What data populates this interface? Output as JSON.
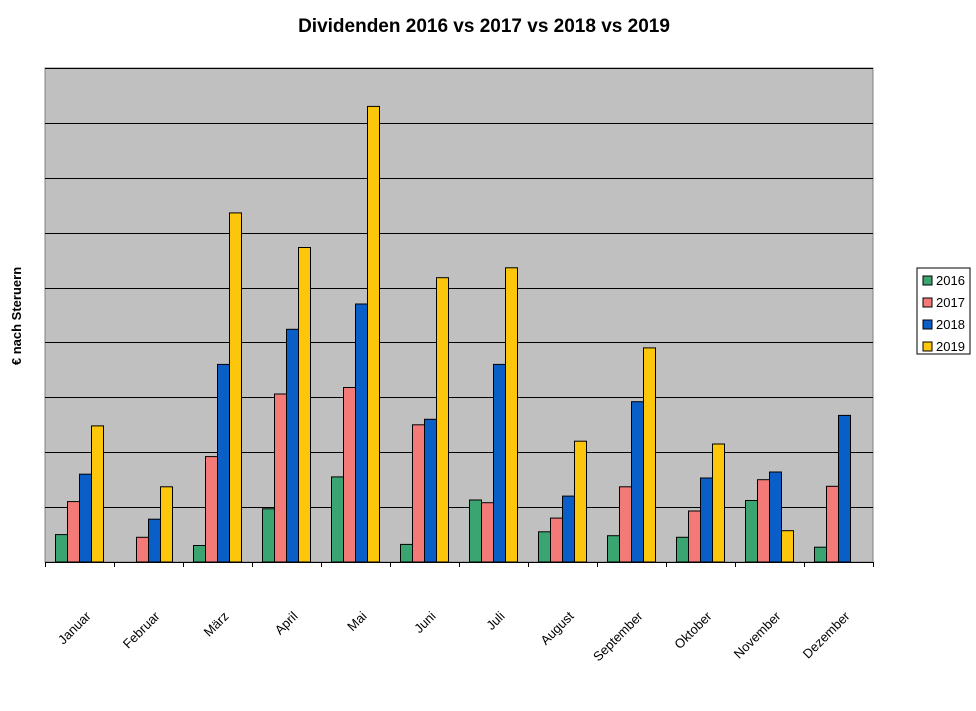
{
  "chart_data": {
    "type": "bar",
    "title": "Dividenden 2016 vs 2017 vs 2018 vs 2019",
    "xlabel": "",
    "ylabel": "€ nach Steruern",
    "ylim": [
      0,
      9
    ],
    "grid": true,
    "legend_position": "right",
    "categories": [
      "Januar",
      "Februar",
      "März",
      "April",
      "Mai",
      "Juni",
      "Juli",
      "August",
      "September",
      "Oktober",
      "November",
      "Dezember"
    ],
    "series": [
      {
        "name": "2016",
        "color": "#3aa571",
        "values": [
          0.5,
          0,
          0.3,
          0.97,
          1.55,
          0.32,
          1.13,
          0.55,
          0.48,
          0.45,
          1.12,
          0.27
        ]
      },
      {
        "name": "2017",
        "color": "#f47a78",
        "values": [
          1.1,
          0.45,
          1.92,
          3.06,
          3.18,
          2.5,
          1.08,
          0.8,
          1.37,
          0.93,
          1.5,
          1.38
        ]
      },
      {
        "name": "2018",
        "color": "#0a5ec8",
        "values": [
          1.6,
          0.78,
          3.6,
          4.24,
          4.7,
          2.6,
          3.6,
          1.2,
          2.92,
          1.53,
          1.64,
          2.67
        ]
      },
      {
        "name": "2019",
        "color": "#fcc60a",
        "values": [
          2.48,
          1.37,
          6.36,
          5.73,
          8.3,
          5.18,
          5.36,
          2.2,
          3.9,
          2.15,
          0.57,
          null
        ]
      }
    ]
  },
  "style": {
    "plot_background": "#c0c0c0",
    "grid_color": "#000000"
  }
}
